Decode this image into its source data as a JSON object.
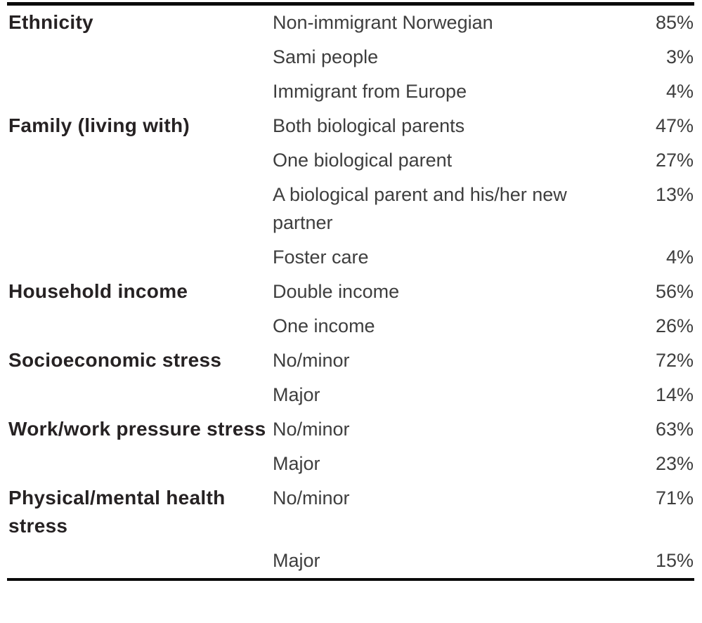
{
  "table": {
    "rows": [
      {
        "category": "Ethnicity",
        "label": "Non-immigrant Norwegian",
        "value": "85%"
      },
      {
        "category": "",
        "label": "Sami people",
        "value": "3%"
      },
      {
        "category": "",
        "label": "Immigrant from Europe",
        "value": "4%"
      },
      {
        "category": "Family (living with)",
        "label": "Both biological parents",
        "value": "47%"
      },
      {
        "category": "",
        "label": "One biological parent",
        "value": "27%"
      },
      {
        "category": "",
        "label": "A biological parent and his/her new partner",
        "value": "13%"
      },
      {
        "category": "",
        "label": "Foster care",
        "value": "4%"
      },
      {
        "category": "Household income",
        "label": "Double income",
        "value": "56%"
      },
      {
        "category": "",
        "label": "One income",
        "value": "26%"
      },
      {
        "category": "Socioeconomic stress",
        "label": "No/minor",
        "value": "72%"
      },
      {
        "category": "",
        "label": "Major",
        "value": "14%"
      },
      {
        "category": "Work/work pressure stress",
        "label": "No/minor",
        "value": "63%"
      },
      {
        "category": "",
        "label": "Major",
        "value": "23%"
      },
      {
        "category": "Physical/mental health stress",
        "label": "No/minor",
        "value": "71%"
      },
      {
        "category": "",
        "label": "Major",
        "value": "15%"
      }
    ]
  },
  "colors": {
    "rule": "#0a0a0a",
    "category_text": "#262223",
    "body_text": "#3e3e3e"
  }
}
